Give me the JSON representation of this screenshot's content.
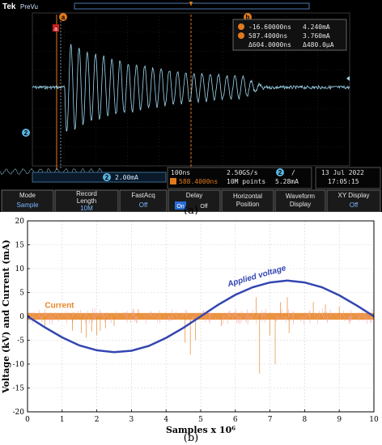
{
  "scope": {
    "brand": "Tek",
    "brand_sub": "PreVu",
    "ch2_label": "2",
    "cursor_a_label": "a",
    "cursor_b_label": "b",
    "readout": {
      "a_time": "-16.60000ns",
      "a_value": "4.240mA",
      "b_time": "587.4000ns",
      "b_value": "3.760mA",
      "delta_time": "Δ604.0000ns",
      "delta_value": "Δ480.0μA"
    },
    "channel_scale": "2.00mA",
    "timebase": "100ns",
    "trigger_pos": "588.4000ns",
    "sample_rate": "2.50GS/s",
    "record_points": "10M points",
    "trig_ch": "2",
    "trig_slope": "/",
    "trig_level": "5.28mA",
    "date": "13 Jul  2022",
    "time": "17:05:15",
    "menu": [
      {
        "title": "Mode",
        "value": "Sample"
      },
      {
        "title": "Record\nLength",
        "value": "10M"
      },
      {
        "title": "FastAcq",
        "value": "Off"
      },
      {
        "title": "Delay",
        "value_on": "On",
        "value_off": "Off"
      },
      {
        "title": "Horizontal\nPosition",
        "value": ""
      },
      {
        "title": "Waveform\nDisplay",
        "value": ""
      },
      {
        "title": "XY Display",
        "value": "Off"
      }
    ],
    "waveform_color": "#9fd8f0",
    "cursor_color": "#e07a1c"
  },
  "caption_a": "(a)",
  "caption_b": "(b)",
  "chart_data": {
    "type": "line",
    "ylabel": "Voltage (kV) and Current (mA)",
    "xlabel": "Samples x 10⁶",
    "xlim": [
      0,
      10
    ],
    "ylim": [
      -20,
      20
    ],
    "xticks": [
      0,
      1,
      2,
      3,
      4,
      5,
      6,
      7,
      8,
      9,
      10
    ],
    "yticks": [
      -20,
      -15,
      -10,
      -5,
      0,
      5,
      10,
      15,
      20
    ],
    "grid": true,
    "series": [
      {
        "name": "Applied voltage",
        "color": "#3346b0",
        "x": [
          0,
          0.5,
          1,
          1.5,
          2,
          2.5,
          3,
          3.5,
          4,
          4.5,
          5,
          5.5,
          6,
          6.5,
          7,
          7.5,
          8,
          8.5,
          9,
          9.5,
          10
        ],
        "y": [
          0,
          -2.3,
          -4.4,
          -6.1,
          -7.1,
          -7.5,
          -7.2,
          -6.2,
          -4.5,
          -2.4,
          0,
          2.4,
          4.5,
          6.1,
          7.1,
          7.5,
          7.1,
          6.1,
          4.4,
          2.3,
          0
        ]
      },
      {
        "name": "Current",
        "color": "#e8872a",
        "x": [
          0,
          10
        ],
        "y": [
          0,
          0
        ],
        "band": 0.7,
        "spikes": [
          {
            "x": 1.3,
            "y": -3.0
          },
          {
            "x": 1.55,
            "y": -3.5
          },
          {
            "x": 1.7,
            "y": -4.5
          },
          {
            "x": 1.85,
            "y": -3.2
          },
          {
            "x": 2.0,
            "y": -4.0
          },
          {
            "x": 2.1,
            "y": -3.0
          },
          {
            "x": 2.25,
            "y": -2.5
          },
          {
            "x": 2.5,
            "y": -2.0
          },
          {
            "x": 4.55,
            "y": -5.5
          },
          {
            "x": 4.7,
            "y": -8.0
          },
          {
            "x": 4.85,
            "y": -5.0
          },
          {
            "x": 5.6,
            "y": -2.0
          },
          {
            "x": 6.6,
            "y": 4.0
          },
          {
            "x": 6.7,
            "y": -12.0
          },
          {
            "x": 7.0,
            "y": -4.0
          },
          {
            "x": 7.15,
            "y": -10.0
          },
          {
            "x": 7.3,
            "y": 3.0
          },
          {
            "x": 7.5,
            "y": 4.0
          },
          {
            "x": 7.55,
            "y": -3.5
          },
          {
            "x": 8.25,
            "y": 3.0
          },
          {
            "x": 8.6,
            "y": 2.5
          },
          {
            "x": 9.0,
            "y": 2.0
          },
          {
            "x": 0.5,
            "y": -2.0
          },
          {
            "x": 3.2,
            "y": 1.5
          }
        ]
      }
    ],
    "annotations": [
      {
        "text": "Current",
        "x": 0.5,
        "y": 1.8,
        "color": "#e8872a"
      },
      {
        "text": "Applied voltage",
        "x": 5.8,
        "y": 6.2,
        "color": "#3346b0"
      }
    ]
  }
}
